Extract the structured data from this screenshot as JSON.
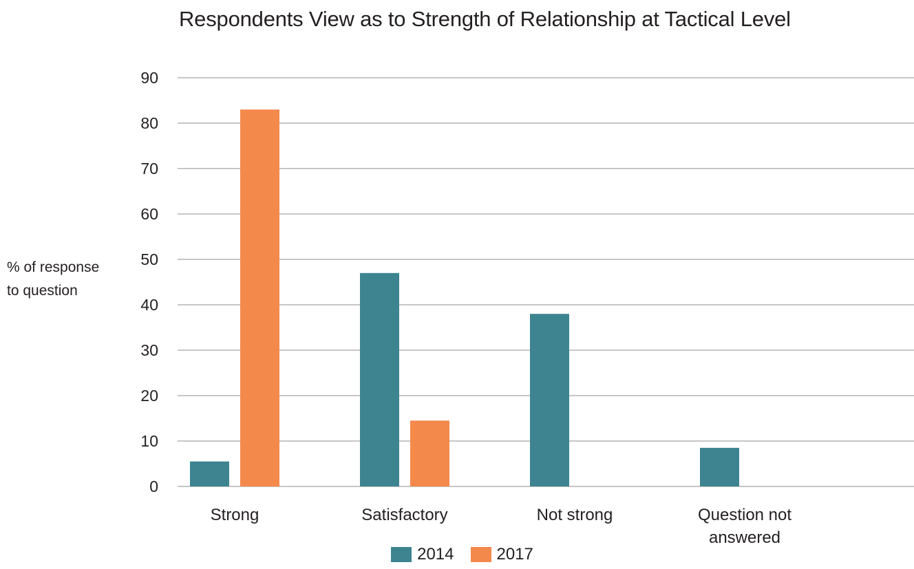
{
  "chart_data": {
    "type": "bar",
    "title": "Respondents View as to Strength of Relationship at Tactical Level",
    "ylabel": "% of response\nto question",
    "xlabel": "",
    "categories": [
      "Strong",
      "Satisfactory",
      "Not strong",
      "Question not\nanswered"
    ],
    "series": [
      {
        "name": "2014",
        "color": "#3d8490",
        "values": [
          5.5,
          47,
          38,
          8.5
        ]
      },
      {
        "name": "2017",
        "color": "#f4894c",
        "values": [
          83,
          14.5,
          0,
          0
        ]
      }
    ],
    "ylim": [
      0,
      90
    ],
    "yticks": [
      0,
      10,
      20,
      30,
      40,
      50,
      60,
      70,
      80,
      90
    ],
    "grid": true,
    "legend": "bottom-center"
  }
}
